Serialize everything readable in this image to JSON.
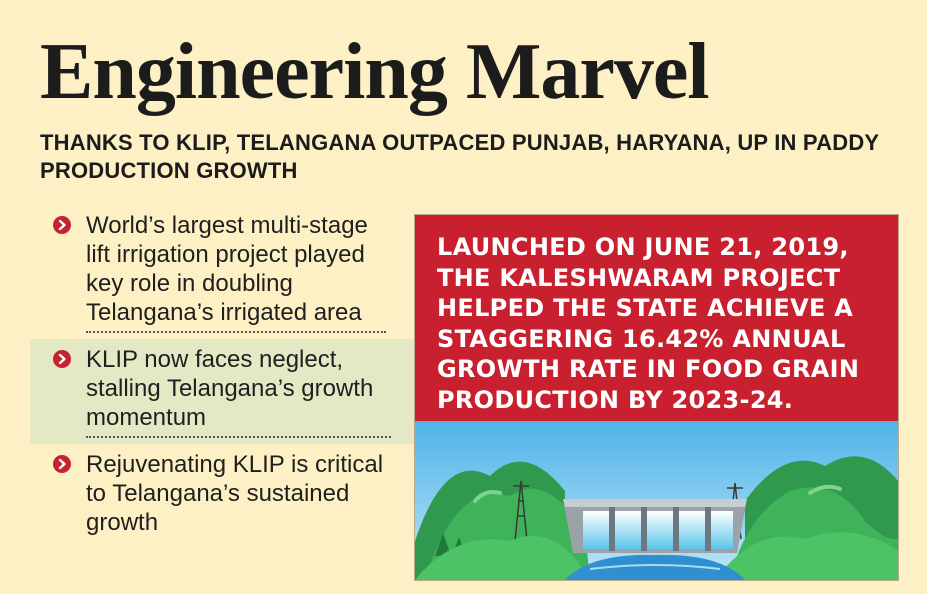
{
  "title": "Engineering Marvel",
  "subtitle": "THANKS TO KLIP, TELANGANA OUTPACED PUNJAB, HARYANA, UP IN PADDY PRODUCTION GROWTH",
  "bullets": [
    "World’s largest multi-stage lift irrigation project played key role in doubling Telangana’s irrigated area",
    "KLIP now faces neglect, stalling Telangana’s growth momentum",
    "Rejuvenating KLIP is critical to Telangana’s sustained growth"
  ],
  "highlight": "LAUNCHED ON JUNE 21, 2019, THE KALESHWARAM PROJECT HELPED THE STATE ACHIEVE A STAGGERING 16.42% ANNUAL GROWTH RATE IN FOOD GRAIN PRODUCTION BY 2023-24.",
  "colors": {
    "background": "#fdf0c4",
    "accent_red": "#c8202e",
    "bullet_highlight": "#e4e8c4"
  }
}
